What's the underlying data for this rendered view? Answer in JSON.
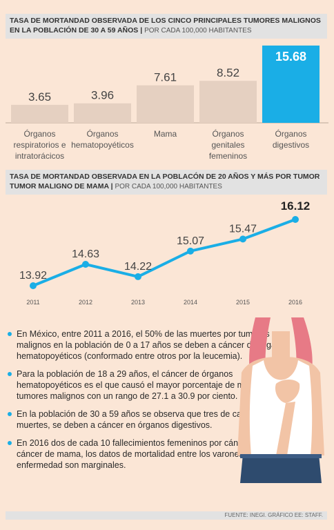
{
  "header1": {
    "title": "TASA DE MORTANDAD OBSERVADA DE LOS CINCO PRINCIPALES TUMORES MALIGNOS EN LA POBLACIÓN DE 30 A 59 AÑOS",
    "subtitle": "POR CADA 100,000 HABITANTES"
  },
  "header2": {
    "title": "TASA DE MORTANDAD OBSERVADA EN LA POBLACÓN DE 20 AÑOS Y MÁS POR TUMOR TUMOR MALIGNO DE MAMA",
    "subtitle": "POR CADA 100,000 HABITANTES"
  },
  "chart_data": [
    {
      "type": "bar",
      "categories": [
        [
          "Órganos",
          "respiratorios e",
          "intratorácicos"
        ],
        [
          "Órganos",
          "hematopoyéticos"
        ],
        [
          "Mama"
        ],
        [
          "Órganos",
          "genitales",
          "femeninos"
        ],
        [
          "Órganos",
          "digestivos"
        ]
      ],
      "values": [
        3.65,
        3.96,
        7.61,
        8.52,
        15.68
      ],
      "value_labels": [
        "3.65",
        "3.96",
        "7.61",
        "8.52",
        "15.68"
      ],
      "highlight_index": 4,
      "colors": {
        "bar": "#e5d0c1",
        "highlight": "#1aaee6",
        "highlight_text": "#ffffff"
      }
    },
    {
      "type": "line",
      "x": [
        "2011",
        "2012",
        "2013",
        "2014",
        "2015",
        "2016"
      ],
      "values": [
        13.92,
        14.63,
        14.22,
        15.07,
        15.47,
        16.12
      ],
      "value_labels": [
        "13.92",
        "14.63",
        "14.22",
        "15.07",
        "15.47",
        "16.12"
      ],
      "emphasize_last": true,
      "colors": {
        "line": "#1aaee6"
      }
    }
  ],
  "bullets": [
    "En México, entre 2011 a 2016, el 50% de las muertes por tumores malignos en la población de 0 a 17 años se deben a cáncer de órganos hematopoyéticos (conformado entre otros por la leucemia).",
    "Para la población de 18 a 29 años, el cáncer de órganos hematopoyéticos es el que causó el mayor porcentaje de muertes por tumores malignos con un rango de 27.1 a 30.9 por ciento.",
    "En la población de 30 a 59 años se observa que tres de cada 10 muertes, se deben a cáncer en órganos digestivos.",
    "En 2016 dos de cada 10 fallecimientos femeninos por cáncer se deben a cáncer de mama, los datos de mortalidad entre los varones por esta enfermedad son marginales."
  ],
  "footer": {
    "source": "FUENTE: INEGI.  GRÁFICO EE: STAFF."
  },
  "colors": {
    "background": "#fbe6d6",
    "accent": "#1aaee6",
    "header_bg": "#e2e2e2"
  }
}
